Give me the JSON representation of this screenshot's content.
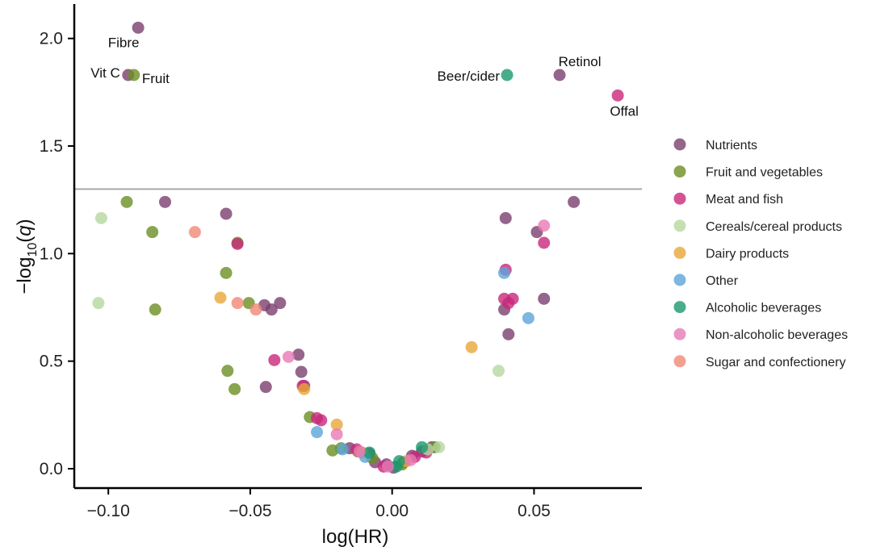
{
  "chart_data": {
    "type": "scatter",
    "xlabel": "log(HR)",
    "ylabel_main": "−log",
    "ylabel_sub": "10",
    "ylabel_var": "q",
    "xlim": [
      -0.112,
      0.088
    ],
    "ylim": [
      -0.09,
      2.16
    ],
    "xticks": [
      -0.1,
      -0.05,
      0.0,
      0.05
    ],
    "xtick_labels": [
      "−0.10",
      "−0.05",
      "0.00",
      "0.05"
    ],
    "yticks": [
      0.0,
      0.5,
      1.0,
      1.5,
      2.0
    ],
    "ytick_labels": [
      "0.0",
      "0.5",
      "1.0",
      "1.5",
      "2.0"
    ],
    "threshold_y": 1.3,
    "grid": false,
    "legend_position": "right",
    "series": [
      {
        "name": "Nutrients",
        "color": "#7B3F6E",
        "points": [
          [
            -0.0895,
            2.05
          ],
          [
            -0.093,
            1.83
          ],
          [
            0.059,
            1.83
          ],
          [
            -0.08,
            1.24
          ],
          [
            -0.0585,
            1.185
          ],
          [
            0.064,
            1.24
          ],
          [
            0.04,
            1.165
          ],
          [
            0.051,
            1.1
          ],
          [
            0.0535,
            0.79
          ],
          [
            0.0395,
            0.74
          ],
          [
            0.041,
            0.625
          ],
          [
            -0.045,
            0.76
          ],
          [
            -0.0425,
            0.74
          ],
          [
            -0.0395,
            0.77
          ],
          [
            -0.033,
            0.53
          ],
          [
            -0.032,
            0.45
          ],
          [
            -0.0445,
            0.38
          ],
          [
            -0.031,
            0.385
          ],
          [
            -0.008,
            0.07
          ],
          [
            -0.006,
            0.03
          ],
          [
            -0.015,
            0.095
          ],
          [
            -0.002,
            0.02
          ],
          [
            0.004,
            0.03
          ],
          [
            0.0105,
            0.08
          ],
          [
            0.014,
            0.1
          ],
          [
            0.007,
            0.06
          ],
          [
            0.0005,
            0.005
          ]
        ]
      },
      {
        "name": "Fruit and vegetables",
        "color": "#6B8E23",
        "points": [
          [
            -0.091,
            1.83
          ],
          [
            -0.0935,
            1.24
          ],
          [
            -0.0845,
            1.1
          ],
          [
            -0.0835,
            0.74
          ],
          [
            -0.0545,
            1.05
          ],
          [
            -0.0585,
            0.91
          ],
          [
            -0.0505,
            0.77
          ],
          [
            -0.058,
            0.455
          ],
          [
            -0.0555,
            0.37
          ],
          [
            -0.029,
            0.24
          ],
          [
            -0.021,
            0.085
          ],
          [
            -0.018,
            0.095
          ],
          [
            -0.012,
            0.08
          ],
          [
            -0.007,
            0.05
          ],
          [
            0.0035,
            0.02
          ],
          [
            0.015,
            0.1
          ]
        ]
      },
      {
        "name": "Meat and fish",
        "color": "#C8287A",
        "points": [
          [
            0.0795,
            1.735
          ],
          [
            0.0535,
            1.05
          ],
          [
            0.04,
            0.925
          ],
          [
            0.0395,
            0.79
          ],
          [
            0.0425,
            0.79
          ],
          [
            0.041,
            0.77
          ],
          [
            -0.0545,
            1.045
          ],
          [
            -0.0415,
            0.505
          ],
          [
            -0.0315,
            0.385
          ],
          [
            -0.0265,
            0.235
          ],
          [
            -0.025,
            0.225
          ],
          [
            -0.0125,
            0.09
          ],
          [
            -0.003,
            0.01
          ],
          [
            0.008,
            0.055
          ],
          [
            0.012,
            0.075
          ]
        ]
      },
      {
        "name": "Cereals/cereal products",
        "color": "#B5D8A0",
        "points": [
          [
            -0.1025,
            1.165
          ],
          [
            -0.1035,
            0.77
          ],
          [
            0.0375,
            0.455
          ],
          [
            0.0165,
            0.1
          ],
          [
            0.0125,
            0.09
          ]
        ]
      },
      {
        "name": "Dairy products",
        "color": "#E8A838",
        "points": [
          [
            0.028,
            0.565
          ],
          [
            -0.0605,
            0.795
          ],
          [
            -0.031,
            0.37
          ],
          [
            -0.0195,
            0.205
          ],
          [
            -0.0105,
            0.075
          ],
          [
            0.005,
            0.035
          ]
        ]
      },
      {
        "name": "Other",
        "color": "#5DA5DA",
        "points": [
          [
            0.048,
            0.7
          ],
          [
            0.0395,
            0.91
          ],
          [
            -0.0265,
            0.17
          ],
          [
            -0.0175,
            0.09
          ],
          [
            -0.0095,
            0.055
          ]
        ]
      },
      {
        "name": "Alcoholic beverages",
        "color": "#1A9A6C",
        "points": [
          [
            0.0405,
            1.83
          ],
          [
            0.0105,
            0.1
          ],
          [
            0.0025,
            0.035
          ],
          [
            -0.008,
            0.075
          ],
          [
            0.0015,
            0.01
          ]
        ]
      },
      {
        "name": "Non-alcoholic beverages",
        "color": "#E77BB7",
        "points": [
          [
            0.0535,
            1.13
          ],
          [
            -0.0365,
            0.52
          ],
          [
            -0.0195,
            0.16
          ],
          [
            -0.0015,
            0.01
          ],
          [
            0.0065,
            0.04
          ],
          [
            -0.0115,
            0.08
          ]
        ]
      },
      {
        "name": "Sugar and confectionery",
        "color": "#F08878",
        "points": [
          [
            -0.0695,
            1.1
          ],
          [
            -0.0545,
            0.77
          ],
          [
            -0.048,
            0.74
          ]
        ]
      }
    ],
    "annotations": [
      {
        "text": "Fibre",
        "x": -0.0895,
        "y": 2.05
      },
      {
        "text": "Vit C",
        "x": -0.093,
        "y": 1.83
      },
      {
        "text": "Fruit",
        "x": -0.091,
        "y": 1.83
      },
      {
        "text": "Beer/cider",
        "x": 0.0405,
        "y": 1.83
      },
      {
        "text": "Retinol",
        "x": 0.059,
        "y": 1.83
      },
      {
        "text": "Offal",
        "x": 0.0795,
        "y": 1.735
      }
    ]
  }
}
